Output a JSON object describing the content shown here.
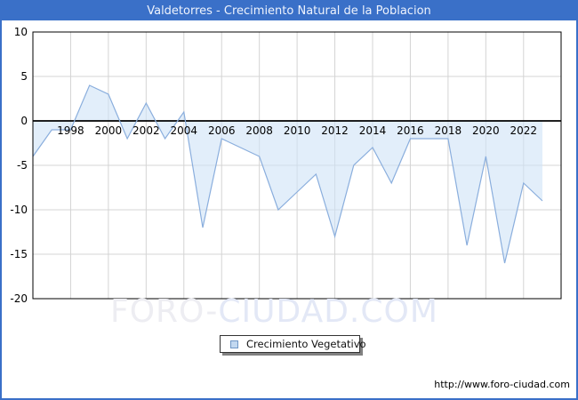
{
  "window": {
    "title": "Valdetorres - Crecimiento Natural de la Poblacion",
    "titlebar_color": "#3a70c8",
    "border_color": "#3a70c8",
    "footer_url": "http://www.foro-ciudad.com"
  },
  "watermark": {
    "left": "FORO-",
    "right": "CIUDAD.COM"
  },
  "legend": {
    "label": "Crecimiento Vegetativo",
    "swatch_fill": "#c2d8f0",
    "swatch_border": "#6f96c5"
  },
  "chart_data": {
    "type": "area",
    "title": "Valdetorres - Crecimiento Natural de la Poblacion",
    "series_name": "Crecimiento Vegetativo",
    "x": [
      1996,
      1997,
      1998,
      1999,
      2000,
      2001,
      2002,
      2003,
      2004,
      2005,
      2006,
      2007,
      2008,
      2009,
      2010,
      2011,
      2012,
      2013,
      2014,
      2015,
      2016,
      2017,
      2018,
      2019,
      2020,
      2021,
      2022,
      2023
    ],
    "series": [
      {
        "name": "Crecimiento Vegetativo",
        "values": [
          -4,
          -1,
          -1,
          4,
          3,
          -2,
          2,
          -2,
          1,
          -12,
          -2,
          -3,
          -4,
          -10,
          -8,
          -6,
          -13,
          -5,
          -3,
          -7,
          -2,
          -2,
          -2,
          -14,
          -4,
          -16,
          -7,
          -9
        ]
      }
    ],
    "ylim": [
      -20,
      10
    ],
    "yticks": [
      10,
      5,
      0,
      -5,
      -10,
      -15,
      -20
    ],
    "ygrid_values": [
      5,
      -5,
      -10,
      -15
    ],
    "xtick_labels": [
      "1998",
      "2000",
      "2002",
      "2004",
      "2006",
      "2008",
      "2010",
      "2012",
      "2014",
      "2016",
      "2018",
      "2020",
      "2022"
    ],
    "grid": true,
    "legend_position": "bottom-center",
    "line_color": "#8aaedd",
    "fill_color": "#cfe3f7",
    "fill_opacity": 0.6,
    "grid_color": "#d4d4d4",
    "axis_color": "#000000"
  }
}
